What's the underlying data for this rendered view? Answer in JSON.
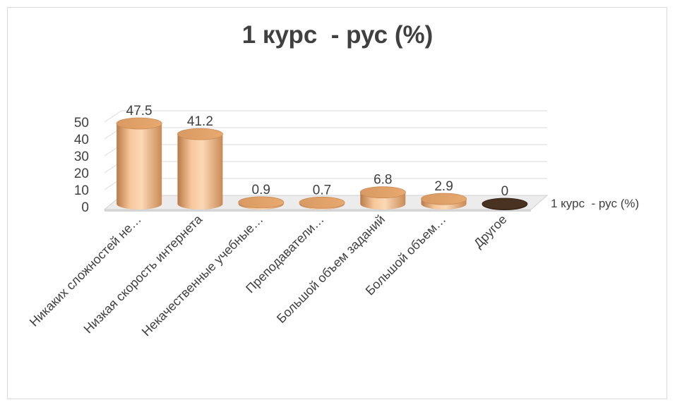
{
  "chart_data": {
    "type": "bar",
    "title": "1 курс  - рус (%)",
    "categories": [
      "Никаких сложностей не…",
      "Низкая скорость интернета",
      "Некачественные учебные…",
      "Преподаватели…",
      "Большой объем заданий",
      "Большой объем…",
      "Другое"
    ],
    "series": [
      {
        "name": "1 курс  - рус (%)",
        "values": [
          47.5,
          41.2,
          0.9,
          0.7,
          6.8,
          2.9,
          0
        ]
      }
    ],
    "data_labels": [
      "47.5",
      "41.2",
      "0.9",
      "0.7",
      "6.8",
      "2.9",
      "0"
    ],
    "ylim": [
      0,
      50
    ],
    "yticks": [
      "0",
      "10",
      "20",
      "30",
      "40",
      "50"
    ],
    "legend_position": "right",
    "grid": true,
    "bar_style": "3d-cylinder",
    "colors": {
      "bar": "#f0b27f",
      "bar_dark": "#c98a55",
      "bar_last": "#4a3222",
      "grid": "#d9d9d9",
      "floor": "#d0d0d0",
      "text": "#404040"
    }
  }
}
